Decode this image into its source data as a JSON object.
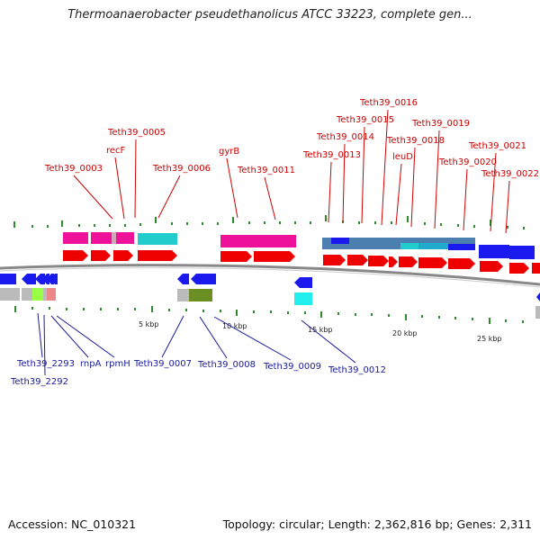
{
  "header": {
    "title": "Thermoanaerobacter pseudethanolicus ATCC 33223, complete gen..."
  },
  "footer": {
    "accession": "Accession: NC_010321",
    "topology": "Topology: circular; Length: 2,362,816 bp; Genes: 2,311"
  },
  "scale": {
    "ticks": [
      "5 kbp",
      "10 kbp",
      "15 kbp",
      "20 kbp",
      "25 kbp"
    ]
  },
  "colors": {
    "forward_arrow": "#ee0000",
    "reverse_arrow": "#1a1aee",
    "magenta": "#ee1199",
    "cyan": "#22cccc",
    "steelblue": "#4a7fb0",
    "grey": "#bbbbbb",
    "olive": "#6b8e23",
    "backbone": "#888888",
    "tick": "#2e8b2e"
  },
  "labels": {
    "top": [
      "Teth39_0003",
      "recF",
      "Teth39_0005",
      "Teth39_0006",
      "gyrB",
      "Teth39_0011",
      "Teth39_0013",
      "Teth39_0014",
      "Teth39_0015",
      "Teth39_0016",
      "leuD",
      "Teth39_0018",
      "Teth39_0019",
      "Teth39_0020",
      "Teth39_0021",
      "Teth39_0022"
    ],
    "bottom": [
      "Teth39_2293",
      "Teth39_2292",
      "rnpA",
      "rpmH",
      "Teth39_0007",
      "Teth39_0008",
      "Teth39_0009",
      "Teth39_0012"
    ]
  }
}
